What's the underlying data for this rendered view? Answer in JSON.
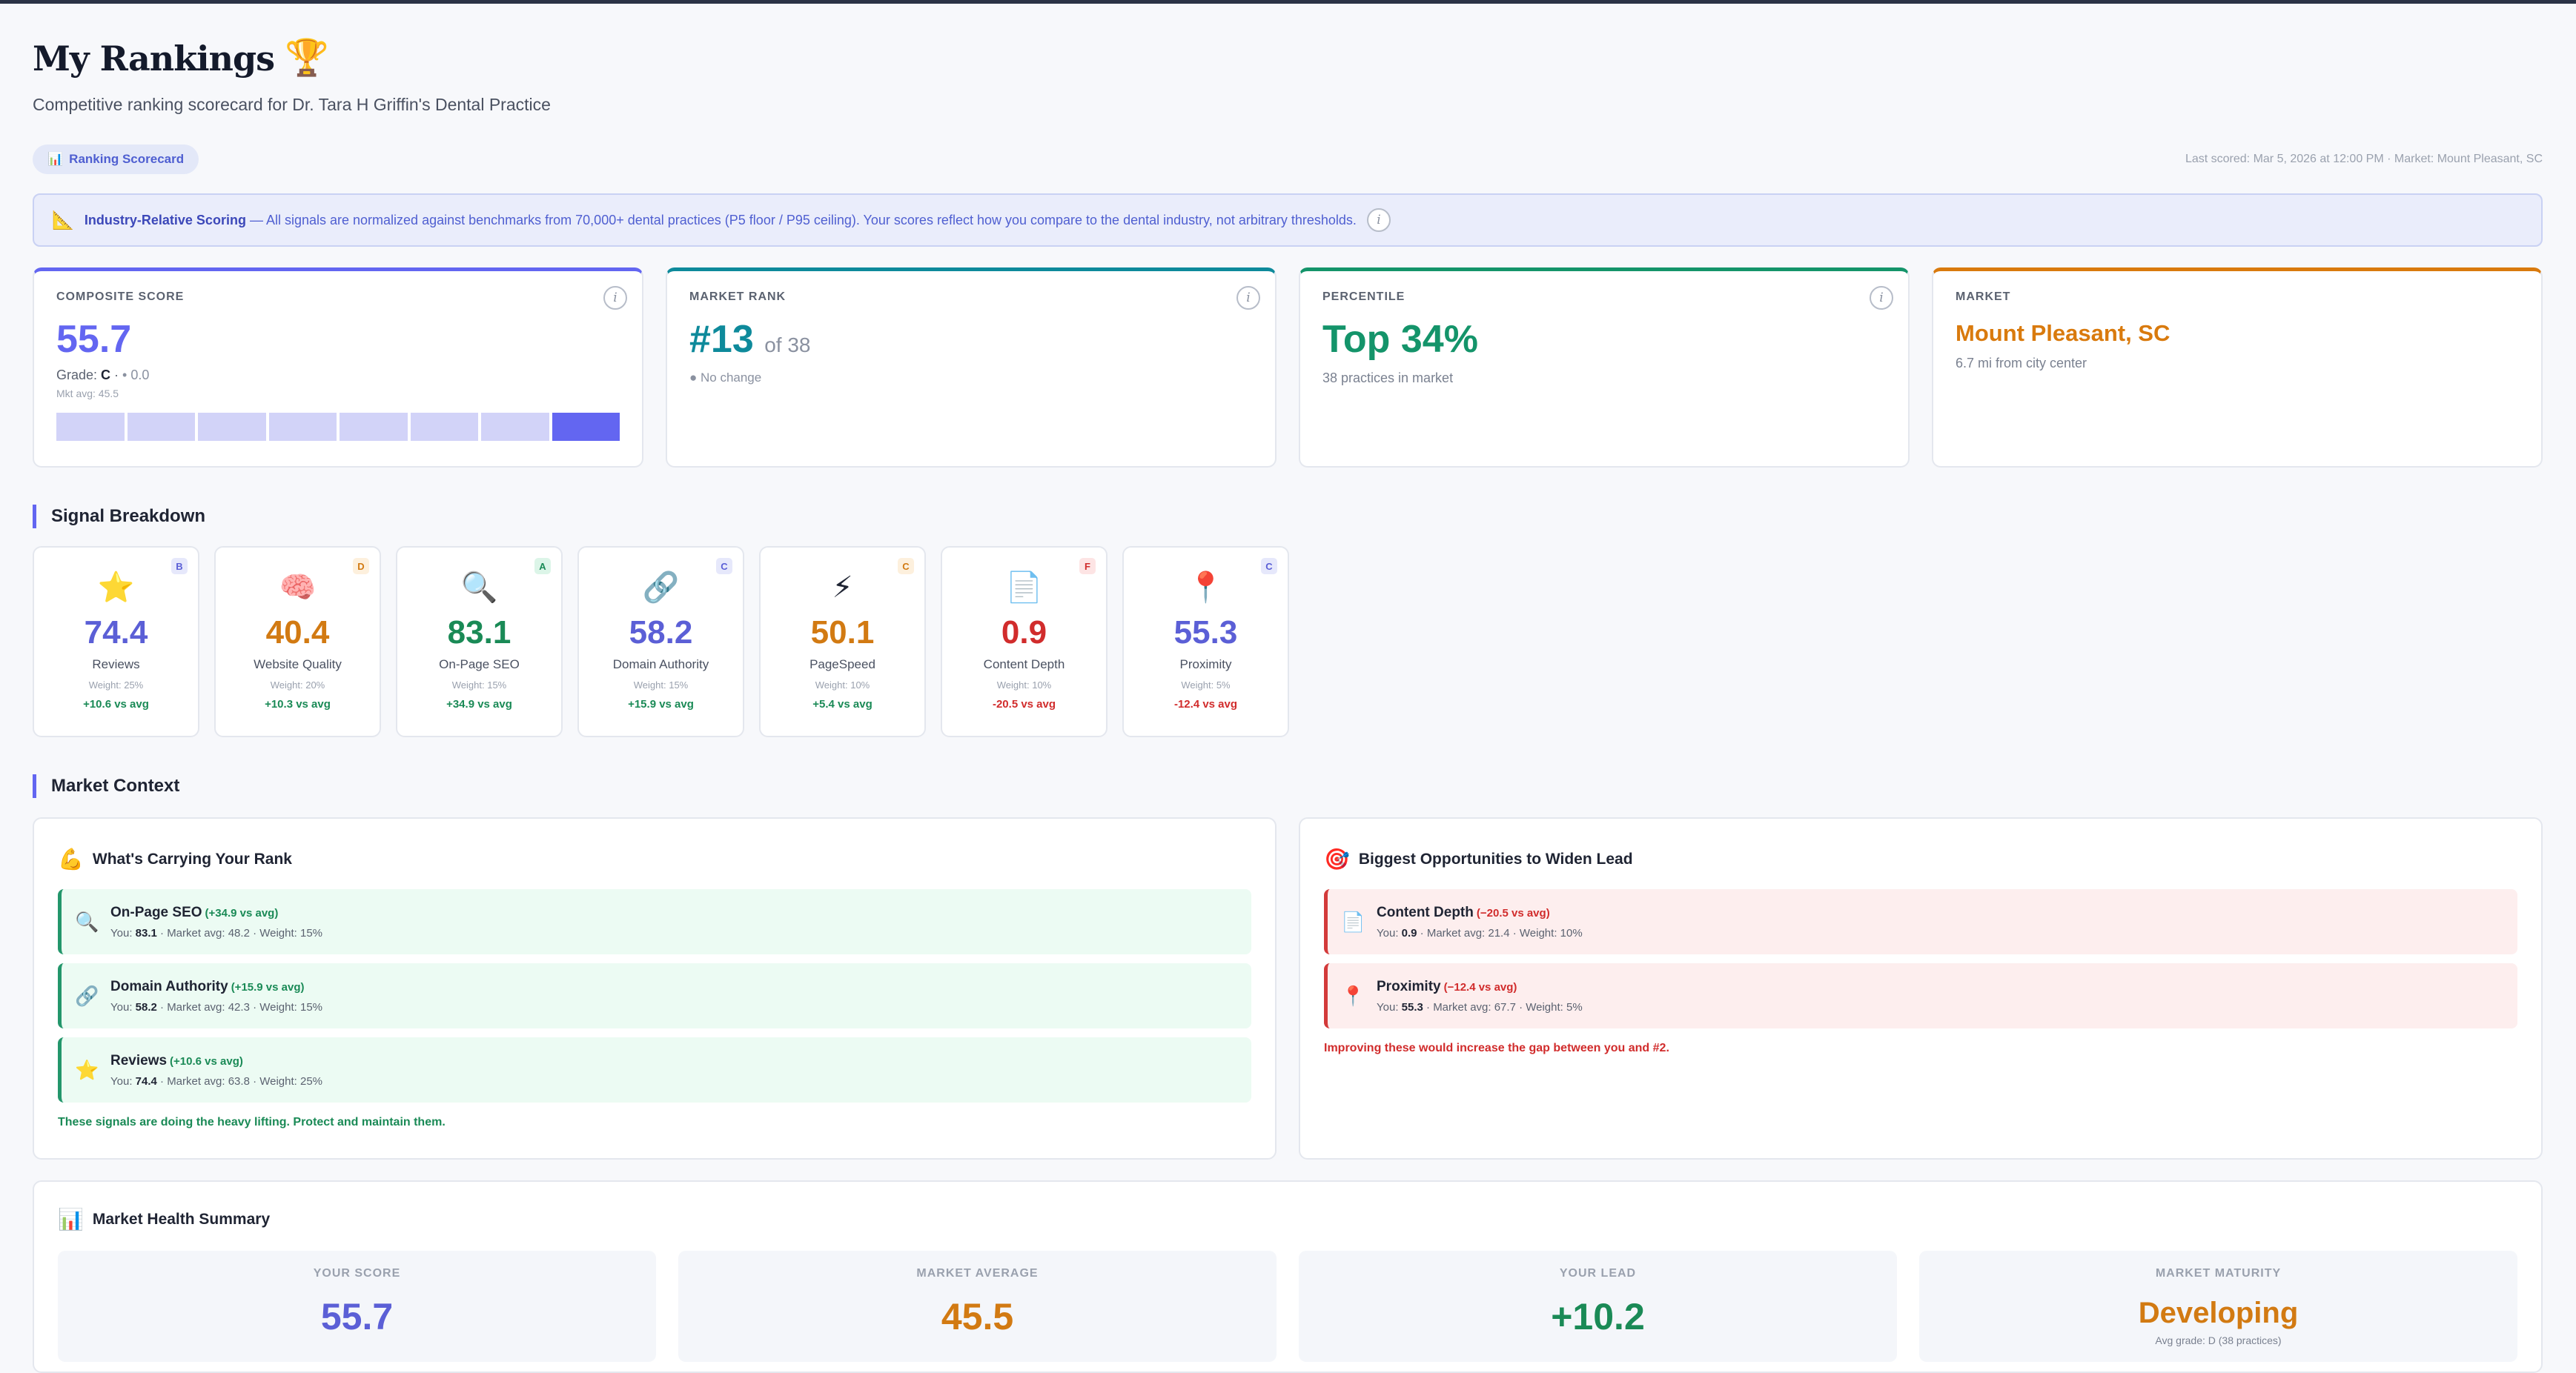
{
  "header": {
    "title": "My Rankings",
    "trophy": "🏆",
    "subtitle": "Competitive ranking scorecard for Dr. Tara H Griffin's Dental Practice"
  },
  "toolbar": {
    "tab_icon": "📊",
    "tab_label": "Ranking Scorecard",
    "last_scored": "Last scored: Mar 5, 2026 at 12:00 PM",
    "market": "Market: Mount Pleasant, SC"
  },
  "banner": {
    "icon": "📐",
    "title": "Industry-Relative Scoring",
    "text": "— All signals are normalized against benchmarks from 70,000+ dental practices (P5 floor / P95 ceiling). Your scores reflect how you compare to the dental industry, not arbitrary thresholds."
  },
  "kpis": {
    "composite": {
      "label": "COMPOSITE SCORE",
      "value": "55.7",
      "grade_prefix": "Grade: ",
      "grade": "C",
      "change": "• 0.0",
      "mkt_avg": "Mkt avg: 45.5",
      "segments": 8,
      "active_segment": 8
    },
    "rank": {
      "label": "MARKET RANK",
      "value": "#13",
      "of": "of 38",
      "change": "● No change"
    },
    "percentile": {
      "label": "PERCENTILE",
      "value": "Top 34%",
      "sub": "38 practices in market"
    },
    "market": {
      "label": "MARKET",
      "value": "Mount Pleasant, SC",
      "sub": "6.7 mi from city center"
    }
  },
  "signal_breakdown": {
    "heading": "Signal Breakdown",
    "items": [
      {
        "icon": "⭐",
        "grade": "B",
        "value": "74.4",
        "name": "Reviews",
        "weight": "Weight: 25%",
        "vs": "+10.6 vs avg",
        "color": "#5b5fd6",
        "positive": true,
        "badge_bg": "#e6e8fb",
        "badge_fg": "#5b5fd6"
      },
      {
        "icon": "🧠",
        "grade": "D",
        "value": "40.4",
        "name": "Website Quality",
        "weight": "Weight: 20%",
        "vs": "+10.3 vs avg",
        "color": "#d27a12",
        "positive": true,
        "badge_bg": "#fdf0dd",
        "badge_fg": "#d27a12"
      },
      {
        "icon": "🔍",
        "grade": "A",
        "value": "83.1",
        "name": "On-Page SEO",
        "weight": "Weight: 15%",
        "vs": "+34.9 vs avg",
        "color": "#1a8a56",
        "positive": true,
        "badge_bg": "#dcf5e8",
        "badge_fg": "#1a8a56"
      },
      {
        "icon": "🔗",
        "grade": "C",
        "value": "58.2",
        "name": "Domain Authority",
        "weight": "Weight: 15%",
        "vs": "+15.9 vs avg",
        "color": "#5b5fd6",
        "positive": true,
        "badge_bg": "#e6e8fb",
        "badge_fg": "#5b5fd6"
      },
      {
        "icon": "⚡",
        "grade": "C",
        "value": "50.1",
        "name": "PageSpeed",
        "weight": "Weight: 10%",
        "vs": "+5.4 vs avg",
        "color": "#d27a12",
        "positive": true,
        "badge_bg": "#fdf0dd",
        "badge_fg": "#d27a12"
      },
      {
        "icon": "📄",
        "grade": "F",
        "value": "0.9",
        "name": "Content Depth",
        "weight": "Weight: 10%",
        "vs": "-20.5 vs avg",
        "color": "#d12c2c",
        "positive": false,
        "badge_bg": "#fde4e4",
        "badge_fg": "#d12c2c"
      },
      {
        "icon": "📍",
        "grade": "C",
        "value": "55.3",
        "name": "Proximity",
        "weight": "Weight: 5%",
        "vs": "-12.4 vs avg",
        "color": "#5b5fd6",
        "positive": false,
        "badge_bg": "#e6e8fb",
        "badge_fg": "#5b5fd6"
      }
    ]
  },
  "market_context": {
    "heading": "Market Context",
    "carrying": {
      "icon": "💪",
      "title": "What's Carrying Your Rank",
      "items": [
        {
          "icon": "🔍",
          "name": "On-Page SEO",
          "delta": "(+34.9 vs avg)",
          "you_label": "You: ",
          "you": "83.1",
          "rest": " · Market avg: 48.2 · Weight: 15%"
        },
        {
          "icon": "🔗",
          "name": "Domain Authority",
          "delta": "(+15.9 vs avg)",
          "you_label": "You: ",
          "you": "58.2",
          "rest": " · Market avg: 42.3 · Weight: 15%"
        },
        {
          "icon": "⭐",
          "name": "Reviews",
          "delta": "(+10.6 vs avg)",
          "you_label": "You: ",
          "you": "74.4",
          "rest": " · Market avg: 63.8 · Weight: 25%"
        }
      ],
      "footer": "These signals are doing the heavy lifting. Protect and maintain them."
    },
    "opportunities": {
      "icon": "🎯",
      "title": "Biggest Opportunities to Widen Lead",
      "items": [
        {
          "icon": "📄",
          "name": "Content Depth",
          "delta": "(−20.5 vs avg)",
          "you_label": "You: ",
          "you": "0.9",
          "rest": " · Market avg: 21.4 · Weight: 10%"
        },
        {
          "icon": "📍",
          "name": "Proximity",
          "delta": "(−12.4 vs avg)",
          "you_label": "You: ",
          "you": "55.3",
          "rest": " · Market avg: 67.7 · Weight: 5%"
        }
      ],
      "footer": "Improving these would increase the gap between you and #2."
    }
  },
  "health": {
    "icon": "📊",
    "title": "Market Health Summary",
    "cards": [
      {
        "label": "YOUR SCORE",
        "value": "55.7",
        "color": "#5b5fd6",
        "sub": ""
      },
      {
        "label": "MARKET AVERAGE",
        "value": "45.5",
        "color": "#d27a12",
        "sub": ""
      },
      {
        "label": "YOUR LEAD",
        "value": "+10.2",
        "color": "#1a8a56",
        "sub": ""
      },
      {
        "label": "MARKET MATURITY",
        "value": "Developing",
        "color": "#d27a12",
        "sub": "Avg grade: D (38 practices)"
      }
    ]
  },
  "colors": {
    "accent": "#6366f1",
    "rank": "#0e8a9b",
    "percentile": "#14946a",
    "market": "#d97a0d"
  }
}
